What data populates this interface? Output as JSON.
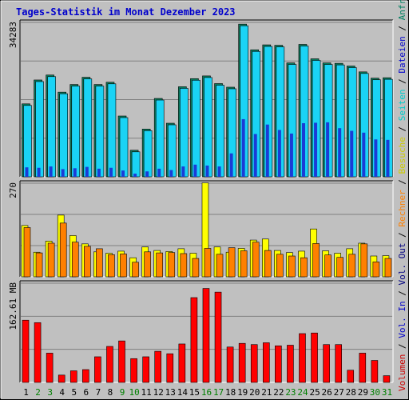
{
  "title": "Tages-Statistik im Monat Dezember 2023",
  "colors": {
    "background": "#c0c0c0",
    "frame_light": "#ffffff",
    "frame_dark": "#808080",
    "title": "#0000cc",
    "grid": "#808080",
    "weekday_label": "#000000",
    "weekend_label": "#008000",
    "anfragen": "#0a7e5e",
    "dateien": "#1ad3f5",
    "seiten": "#1a3cd6",
    "besuche": "#ffff00",
    "rechner": "#ff8000",
    "volumen": "#ff0000"
  },
  "right_legend": [
    {
      "key": "volumen",
      "text": "Volumen",
      "color": "#cc0000"
    },
    {
      "key": "sep",
      "text": " / ",
      "color": "#000000"
    },
    {
      "key": "vol_in",
      "text": "Vol. In",
      "color": "#0000cc"
    },
    {
      "key": "sep",
      "text": " / ",
      "color": "#000000"
    },
    {
      "key": "vol_out",
      "text": "Vol. Out",
      "color": "#000080"
    },
    {
      "key": "sep",
      "text": " / ",
      "color": "#000000"
    },
    {
      "key": "rechner",
      "text": "Rechner",
      "color": "#ff8000"
    },
    {
      "key": "sep",
      "text": " / ",
      "color": "#000000"
    },
    {
      "key": "besuche",
      "text": "Besuche",
      "color": "#cccc00"
    },
    {
      "key": "sep",
      "text": " / ",
      "color": "#000000"
    },
    {
      "key": "seiten",
      "text": "Seiten",
      "color": "#00cccc"
    },
    {
      "key": "sep",
      "text": " / ",
      "color": "#000000"
    },
    {
      "key": "dateien",
      "text": "Dateien",
      "color": "#0000cc"
    },
    {
      "key": "sep",
      "text": " / ",
      "color": "#000000"
    },
    {
      "key": "anfragen",
      "text": "Anfragen",
      "color": "#008060"
    }
  ],
  "chart_data": [
    {
      "type": "bar",
      "panel": "hits",
      "y_max_label": "34283",
      "ylim": [
        0,
        34283
      ],
      "categories": [
        "1",
        "2",
        "3",
        "4",
        "5",
        "6",
        "7",
        "8",
        "9",
        "10",
        "11",
        "12",
        "13",
        "14",
        "15",
        "16",
        "17",
        "18",
        "19",
        "20",
        "21",
        "22",
        "23",
        "24",
        "25",
        "26",
        "27",
        "28",
        "29",
        "30",
        "31"
      ],
      "weekend_days": [
        "2",
        "3",
        "9",
        "10",
        "16",
        "17",
        "23",
        "24",
        "30",
        "31"
      ],
      "series": [
        {
          "name": "Anfragen",
          "values": [
            16200,
            21500,
            22600,
            18800,
            20500,
            22100,
            20500,
            21000,
            13500,
            5900,
            10600,
            17400,
            11900,
            20000,
            21800,
            22400,
            20700,
            19900,
            33900,
            28200,
            29300,
            29200,
            25300,
            29400,
            26200,
            25300,
            25200,
            24600,
            23300,
            21900,
            22000
          ]
        },
        {
          "name": "Dateien",
          "values": [
            16200,
            21500,
            22600,
            18800,
            20500,
            22100,
            20500,
            21000,
            13500,
            5900,
            10600,
            17400,
            11900,
            20000,
            21800,
            22400,
            20700,
            19900,
            33900,
            28200,
            29300,
            29200,
            25300,
            29400,
            26200,
            25300,
            25200,
            24600,
            23300,
            21900,
            22000
          ]
        },
        {
          "name": "Seiten",
          "values": [
            2100,
            2000,
            2300,
            1700,
            1900,
            2200,
            1800,
            2000,
            1400,
            700,
            1200,
            1800,
            1500,
            2300,
            2700,
            2500,
            2300,
            5200,
            12800,
            9500,
            11600,
            10400,
            9600,
            11900,
            12000,
            12100,
            10800,
            10200,
            9800,
            8300,
            8200
          ]
        }
      ]
    },
    {
      "type": "bar",
      "panel": "visits",
      "y_max_label": "270",
      "ylim": [
        0,
        270
      ],
      "categories": [
        "1",
        "2",
        "3",
        "4",
        "5",
        "6",
        "7",
        "8",
        "9",
        "10",
        "11",
        "12",
        "13",
        "14",
        "15",
        "16",
        "17",
        "18",
        "19",
        "20",
        "21",
        "22",
        "23",
        "24",
        "25",
        "26",
        "27",
        "28",
        "29",
        "30",
        "31"
      ],
      "series": [
        {
          "name": "Besuche",
          "values": [
            148,
            71,
            103,
            178,
            119,
            95,
            72,
            68,
            74,
            55,
            86,
            76,
            73,
            81,
            68,
            271,
            86,
            71,
            82,
            106,
            109,
            76,
            70,
            74,
            138,
            75,
            68,
            81,
            97,
            60,
            61
          ]
        },
        {
          "name": "Rechner",
          "values": [
            142,
            69,
            97,
            155,
            100,
            88,
            81,
            64,
            66,
            42,
            72,
            69,
            70,
            67,
            53,
            82,
            65,
            84,
            75,
            100,
            76,
            65,
            60,
            55,
            96,
            63,
            56,
            65,
            95,
            43,
            53
          ]
        }
      ]
    },
    {
      "type": "bar",
      "panel": "volume",
      "y_max_label": "162.61 MB",
      "ylim": [
        0,
        162.61
      ],
      "categories": [
        "1",
        "2",
        "3",
        "4",
        "5",
        "6",
        "7",
        "8",
        "9",
        "10",
        "11",
        "12",
        "13",
        "14",
        "15",
        "16",
        "17",
        "18",
        "19",
        "20",
        "21",
        "22",
        "23",
        "24",
        "25",
        "26",
        "27",
        "28",
        "29",
        "30",
        "31"
      ],
      "series": [
        {
          "name": "Volumen",
          "values": [
            102,
            98,
            48,
            12,
            19,
            21,
            42,
            59,
            68,
            39,
            42,
            51,
            47,
            63,
            139,
            154,
            148,
            58,
            64,
            62,
            65,
            60,
            61,
            80,
            81,
            62,
            62,
            20,
            48,
            36,
            11
          ]
        }
      ]
    }
  ]
}
